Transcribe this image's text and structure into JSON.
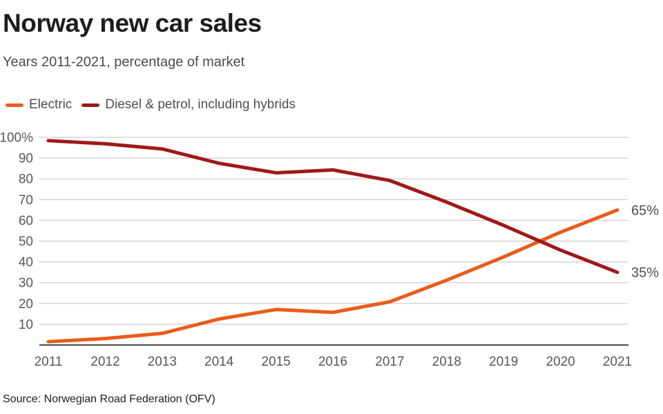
{
  "header": {
    "title": "Norway new car sales",
    "subtitle": "Years 2011-2021, percentage of market"
  },
  "legend": {
    "items": [
      {
        "label": "Electric",
        "color": "#e85c1b"
      },
      {
        "label": "Diesel & petrol, including hybrids",
        "color": "#9e1a18"
      }
    ]
  },
  "source": "Source: Norwegian Road Federation (OFV)",
  "chart_data": {
    "type": "line",
    "title": "Norway new car sales",
    "subtitle": "Years 2011-2021, percentage of market",
    "x": [
      2011,
      2012,
      2013,
      2014,
      2015,
      2016,
      2017,
      2018,
      2019,
      2020,
      2021
    ],
    "series": [
      {
        "name": "Electric",
        "color": "#e85c1b",
        "values": [
          1.6,
          3.1,
          5.6,
          12.5,
          17.1,
          15.7,
          20.8,
          31.2,
          42.4,
          54.3,
          65
        ],
        "end_label": "65%"
      },
      {
        "name": "Diesel & petrol, including hybrids",
        "color": "#9e1a18",
        "values": [
          98.4,
          96.9,
          94.4,
          87.5,
          82.9,
          84.3,
          79.2,
          68.8,
          57.6,
          45.7,
          35
        ],
        "end_label": "35%"
      }
    ],
    "ylim": [
      0,
      100
    ],
    "yticks": [
      10,
      20,
      30,
      40,
      50,
      60,
      70,
      80,
      90,
      100
    ],
    "ytick_top_label": "100%",
    "grid": "horizontal",
    "grid_color": "#cccccc",
    "axis_color": "#111111",
    "tick_label_color": "#575757",
    "end_label_color": "#4f4f4f",
    "legend_position": "top"
  }
}
